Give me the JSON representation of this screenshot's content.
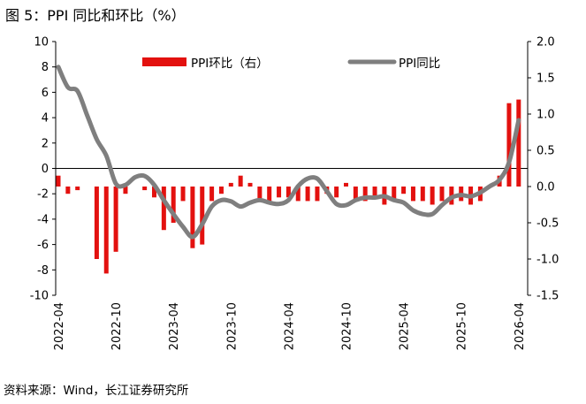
{
  "figure": {
    "title": "图  5：PPI 同比和环比（%）",
    "source": "资料来源：Wind，长江证券研究所"
  },
  "chart_data": {
    "type": "bar+line",
    "title": "图  5：PPI 同比和环比（%）",
    "left_axis": {
      "ylim": [
        -10,
        10
      ],
      "ticks": [
        "10",
        "8",
        "6",
        "4",
        "2",
        "0",
        "-2",
        "-4",
        "-6",
        "-8",
        "-10"
      ]
    },
    "right_axis": {
      "ylim": [
        -1.5,
        2.0
      ],
      "ticks": [
        "2.0",
        "1.5",
        "1.0",
        "0.5",
        "0.0",
        "-0.5",
        "-1.0",
        "-1.5"
      ]
    },
    "x_tick_labels": [
      "2022-04",
      "2022-10",
      "2023-04",
      "2023-10",
      "2024-04",
      "2024-10",
      "2025-04",
      "2025-10",
      "2026-04"
    ],
    "legend_placement": "top",
    "grid": false,
    "x": [
      "2022-04",
      "2022-05",
      "2022-06",
      "2022-07",
      "2022-08",
      "2022-09",
      "2022-10",
      "2022-11",
      "2022-12",
      "2023-01",
      "2023-02",
      "2023-03",
      "2023-04",
      "2023-05",
      "2023-06",
      "2023-07",
      "2023-08",
      "2023-09",
      "2023-10",
      "2023-11",
      "2023-12",
      "2024-01",
      "2024-02",
      "2024-03",
      "2024-04",
      "2024-05",
      "2024-06",
      "2024-07",
      "2024-08",
      "2024-09",
      "2024-10",
      "2024-11",
      "2024-12",
      "2025-01",
      "2025-02",
      "2025-03",
      "2025-04",
      "2025-05",
      "2025-06",
      "2025-07",
      "2025-08",
      "2025-09",
      "2025-10",
      "2025-11",
      "2025-12",
      "2026-01",
      "2026-02",
      "2026-03",
      "2026-04"
    ],
    "series": [
      {
        "name": "PPI环比（右）",
        "kind": "bar",
        "axis": "right",
        "color": "#e3110f",
        "values": [
          0.15,
          -0.1,
          -0.05,
          0.0,
          -1.0,
          -1.2,
          -0.9,
          -0.1,
          0.0,
          -0.05,
          -0.15,
          -0.6,
          -0.5,
          -0.2,
          -0.85,
          -0.8,
          -0.2,
          -0.1,
          0.05,
          0.15,
          0.05,
          -0.2,
          -0.2,
          -0.15,
          -0.15,
          -0.2,
          -0.2,
          -0.2,
          -0.1,
          -0.15,
          0.05,
          -0.2,
          -0.2,
          -0.15,
          -0.25,
          -0.2,
          -0.1,
          -0.2,
          -0.2,
          -0.25,
          -0.2,
          -0.25,
          -0.2,
          -0.25,
          -0.2,
          0.0,
          0.15,
          1.15,
          1.2
        ]
      },
      {
        "name": "PPI同比",
        "kind": "line",
        "axis": "left",
        "color": "#7f7f7f",
        "values": [
          8.0,
          6.4,
          6.1,
          4.2,
          2.3,
          1.0,
          -1.2,
          -1.3,
          -0.7,
          -0.6,
          -1.3,
          -2.5,
          -3.6,
          -4.6,
          -5.4,
          -4.4,
          -3.0,
          -2.5,
          -2.6,
          -3.0,
          -2.7,
          -2.5,
          -2.7,
          -2.8,
          -2.5,
          -1.4,
          -0.8,
          -0.8,
          -1.8,
          -2.8,
          -2.9,
          -2.5,
          -2.3,
          -2.3,
          -2.2,
          -2.5,
          -2.7,
          -3.3,
          -3.6,
          -3.6,
          -2.9,
          -2.3,
          -2.1,
          -2.2,
          -1.9,
          -1.4,
          -0.9,
          0.5,
          3.8
        ]
      }
    ]
  }
}
